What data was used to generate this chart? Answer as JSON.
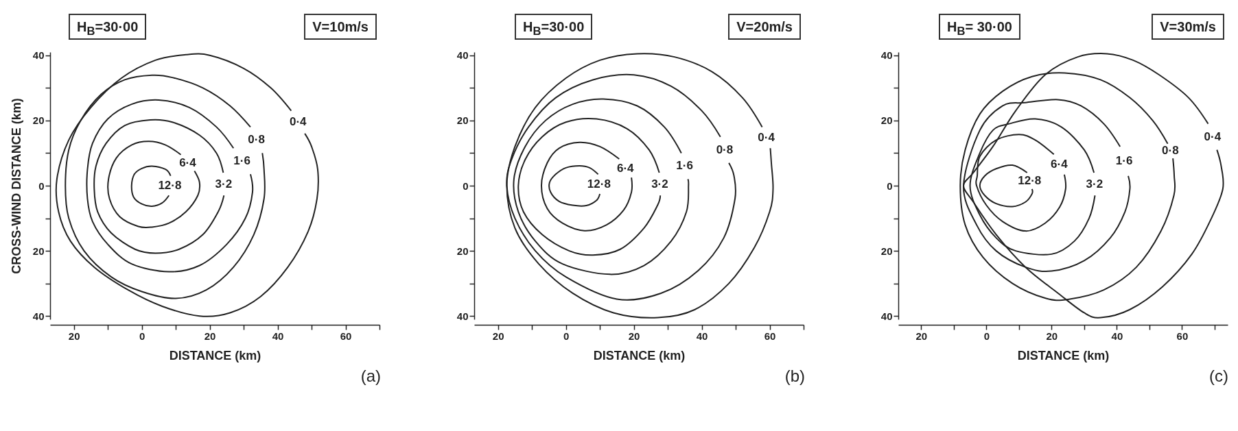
{
  "chart_data": [
    {
      "type": "line",
      "xlabel": "DISTANCE (km)",
      "ylabel": "CROSS-WIND DISTANCE (km)",
      "annotations": [
        "H$_{B}$=30·00",
        "V=10m/s",
        "(a)"
      ],
      "xlim": [
        -27,
        70
      ],
      "ylim": [
        -41,
        41
      ],
      "xticks": [
        {
          "value": -20,
          "label": "20"
        },
        {
          "value": -10,
          "label": null
        },
        0,
        {
          "value": 10,
          "label": null
        },
        20,
        {
          "value": 30,
          "label": null
        },
        40,
        {
          "value": 50,
          "label": null
        },
        60,
        {
          "value": 70,
          "label": null
        }
      ],
      "yticks": [
        {
          "value": -40,
          "label": "40"
        },
        {
          "value": -30,
          "label": null
        },
        {
          "value": -20,
          "label": "20"
        },
        {
          "value": -10,
          "label": null
        },
        0,
        {
          "value": 10,
          "label": null
        },
        20,
        {
          "value": 30,
          "label": null
        },
        40
      ],
      "grid": false,
      "legend": false,
      "marker": "none",
      "line_style": "solid",
      "series": [
        {
          "name": "12·8",
          "color": "#222222",
          "x": [
            8.5,
            7,
            3,
            0,
            -2.2,
            -3,
            -2.4,
            0,
            3,
            6,
            8
          ],
          "values": [
            3,
            5,
            6,
            5.3,
            3.5,
            0,
            -3.5,
            -5.6,
            -6.3,
            -5.3,
            -3
          ]
        },
        {
          "name": "6·4",
          "color": "#222222",
          "x": [
            11.5,
            7,
            2,
            -3,
            -7.5,
            -9.8,
            -9.5,
            -6.5,
            -1,
            3,
            8,
            13,
            16.5,
            17,
            15.5
          ],
          "values": [
            9.5,
            12.5,
            13.6,
            12.5,
            8.5,
            2,
            -4,
            -9.5,
            -12.5,
            -12.7,
            -11.5,
            -8,
            -3,
            1,
            4.5
          ]
        },
        {
          "name": "3·2",
          "color": "#222222",
          "x": [
            24,
            22,
            17,
            9,
            2.5,
            -5,
            -10.5,
            -13.5,
            -14,
            -13,
            -9,
            -2,
            4,
            11,
            18,
            22.5,
            24.2
          ],
          "values": [
            4,
            10,
            15.5,
            19.5,
            20.2,
            18.5,
            13,
            6,
            -1,
            -8,
            -14.5,
            -19.5,
            -20.7,
            -19.5,
            -15,
            -8,
            -3
          ]
        },
        {
          "name": "1·6",
          "color": "#222222",
          "x": [
            27,
            22,
            14,
            5,
            -3,
            -10,
            -14.5,
            -16,
            -16,
            -14.5,
            -10,
            -3,
            8,
            17,
            25,
            30.5,
            32.6,
            32
          ],
          "values": [
            11.5,
            18,
            24,
            26.3,
            25,
            20.5,
            13,
            5,
            -4,
            -11,
            -18,
            -24,
            -26.4,
            -24.5,
            -18,
            -10,
            -2,
            3.5
          ]
        },
        {
          "name": "0·8",
          "color": "#222222",
          "x": [
            32,
            26,
            18,
            9,
            3,
            -5,
            -12,
            -18,
            -21.5,
            -22.5,
            -21.5,
            -17,
            -9,
            0,
            10,
            19,
            27,
            33,
            36,
            36,
            35.5
          ],
          "values": [
            18,
            24.5,
            30,
            33.2,
            33.9,
            32.5,
            28,
            20,
            11,
            0,
            -10,
            -20,
            -28,
            -32.5,
            -34.6,
            -32,
            -25,
            -15,
            -4,
            5,
            10
          ]
        },
        {
          "name": "0·4",
          "color": "#222222",
          "x": [
            44,
            38,
            30,
            20,
            13,
            4,
            -6,
            -15,
            -21.5,
            -25,
            -24.5,
            -21,
            -14,
            -4,
            6,
            17,
            26,
            35,
            43,
            49,
            51.6,
            51.8,
            50,
            48
          ],
          "values": [
            23,
            30,
            36,
            40,
            40.2,
            38.5,
            33,
            24,
            14,
            2,
            -8,
            -17,
            -25,
            -32,
            -37,
            -40,
            -39,
            -34,
            -25,
            -14,
            -4,
            5,
            12,
            16
          ]
        }
      ]
    },
    {
      "type": "line",
      "xlabel": "DISTANCE (km)",
      "annotations": [
        "H$_{B}$=30·00",
        "V=20m/s",
        "(b)"
      ],
      "xlim": [
        -27,
        70
      ],
      "ylim": [
        -41,
        41
      ],
      "xticks": [
        {
          "value": -20,
          "label": "20"
        },
        {
          "value": -10,
          "label": null
        },
        0,
        {
          "value": 10,
          "label": null
        },
        20,
        {
          "value": 30,
          "label": null
        },
        40,
        {
          "value": 50,
          "label": null
        },
        60,
        {
          "value": 70,
          "label": null
        }
      ],
      "yticks": [
        {
          "value": -40,
          "label": "40"
        },
        {
          "value": -30,
          "label": null
        },
        {
          "value": -20,
          "label": "20"
        },
        {
          "value": -10,
          "label": null
        },
        0,
        {
          "value": 10,
          "label": null
        },
        20,
        {
          "value": 30,
          "label": null
        },
        40
      ],
      "grid": false,
      "legend": false,
      "marker": "none",
      "line_style": "solid",
      "series": [
        {
          "name": "12·8",
          "color": "#222222",
          "x": [
            9.5,
            7,
            4,
            0,
            -3,
            -4.8,
            -4.5,
            -2,
            2,
            6,
            9,
            10
          ],
          "values": [
            3.5,
            5.5,
            6.1,
            5.5,
            3.5,
            1,
            -2,
            -4.8,
            -6,
            -6.1,
            -4.5,
            -2.5
          ]
        },
        {
          "name": "6·4",
          "color": "#222222",
          "x": [
            15.7,
            10,
            4,
            -2,
            -5.5,
            -7.2,
            -5.5,
            -1,
            5.5,
            12,
            17,
            19.3,
            19.3
          ],
          "values": [
            8.2,
            12,
            13.3,
            11.5,
            7,
            0,
            -7,
            -11.5,
            -13.8,
            -12,
            -7.5,
            -2,
            2.5
          ]
        },
        {
          "name": "3·2",
          "color": "#222222",
          "x": [
            27.5,
            24.5,
            18,
            9,
            0,
            -7,
            -12,
            -14,
            -12.5,
            -7,
            1,
            8,
            16,
            23,
            27,
            27.8
          ],
          "values": [
            4,
            11,
            17.5,
            20.5,
            19.5,
            15,
            8,
            0,
            -8,
            -15,
            -20,
            -21.3,
            -19.5,
            -13,
            -6,
            -3
          ]
        },
        {
          "name": "1·6",
          "color": "#222222",
          "x": [
            34,
            29,
            21,
            11,
            2,
            -6,
            -12,
            -15.3,
            -14,
            -9,
            -1,
            13,
            23,
            31,
            35.5,
            36.1,
            35.9
          ],
          "values": [
            10,
            18,
            24.5,
            26.6,
            25,
            20,
            12,
            2,
            -8,
            -17,
            -24,
            -27.2,
            -24.5,
            -17,
            -8,
            0,
            2
          ]
        },
        {
          "name": "0·8",
          "color": "#222222",
          "x": [
            45.5,
            40,
            31,
            20,
            8,
            -3,
            -11,
            -16,
            -17.4,
            -15,
            -9,
            0,
            15,
            28,
            39,
            46.5,
            49.8,
            49.5,
            48
          ],
          "values": [
            15,
            23,
            30.5,
            34,
            32.5,
            27,
            18,
            8,
            0,
            -10,
            -20,
            -28,
            -34.8,
            -33,
            -26,
            -16,
            -4,
            3,
            7
          ]
        },
        {
          "name": "0·4",
          "color": "#222222",
          "x": [
            57.8,
            52,
            43,
            32,
            21,
            10,
            0,
            -9,
            -15,
            -17.4,
            -15,
            -8,
            2,
            14,
            27,
            38,
            48,
            55.5,
            60,
            61,
            60.5,
            60.2
          ],
          "values": [
            18,
            27,
            35,
            39.5,
            40.5,
            38.5,
            33,
            24,
            12,
            0,
            -13,
            -24,
            -33,
            -39,
            -40.5,
            -38,
            -30,
            -19,
            -8,
            -1,
            7,
            11.5
          ]
        }
      ]
    },
    {
      "type": "line",
      "xlabel": "DISTANCE (km)",
      "annotations": [
        "H$_{B}$= 30·00",
        "V=30m/s",
        "(c)"
      ],
      "xlim": [
        -27,
        74
      ],
      "ylim": [
        -41,
        41
      ],
      "xticks": [
        {
          "value": -20,
          "label": "20"
        },
        {
          "value": -10,
          "label": null
        },
        0,
        {
          "value": 10,
          "label": null
        },
        20,
        {
          "value": 30,
          "label": null
        },
        40,
        {
          "value": 50,
          "label": null
        },
        60,
        {
          "value": 70,
          "label": null
        }
      ],
      "yticks": [
        {
          "value": -40,
          "label": "40"
        },
        {
          "value": -30,
          "label": null
        },
        {
          "value": -20,
          "label": "20"
        },
        {
          "value": -10,
          "label": null
        },
        0,
        {
          "value": 10,
          "label": null
        },
        20,
        {
          "value": 30,
          "label": null
        },
        40
      ],
      "grid": false,
      "legend": false,
      "marker": "none",
      "line_style": "solid",
      "series": [
        {
          "name": "12·8",
          "color": "#222222",
          "x": [
            12.5,
            8,
            3,
            -0.5,
            -2,
            -0.5,
            3,
            8,
            12,
            14,
            14
          ],
          "values": [
            4,
            6.3,
            5.2,
            3,
            0,
            -3,
            -5.5,
            -6.4,
            -5,
            -2.5,
            -1
          ]
        },
        {
          "name": "6·4",
          "color": "#222222",
          "x": [
            20.7,
            15,
            10,
            3,
            -2,
            -2.8,
            -3,
            0,
            5,
            12,
            18,
            22.5,
            24.3,
            23.9
          ],
          "values": [
            9.6,
            14,
            15.7,
            14,
            9,
            3,
            0,
            -6,
            -11,
            -13.9,
            -11.5,
            -6.5,
            -1,
            3.4
          ]
        },
        {
          "name": "3·2",
          "color": "#222222",
          "x": [
            33,
            30,
            23,
            15,
            7,
            2,
            -2,
            -5,
            -2,
            3,
            9,
            20,
            27,
            31.5,
            33.3
          ],
          "values": [
            4,
            11,
            18,
            20.5,
            19,
            17,
            10,
            0,
            -9,
            -16,
            -20,
            -21,
            -17,
            -10,
            -3
          ]
        },
        {
          "name": "1·6",
          "color": "#222222",
          "x": [
            41,
            36,
            29,
            22,
            12,
            5,
            -2,
            -7,
            -3,
            3,
            12,
            20,
            30,
            38,
            42.5,
            44,
            43.5
          ],
          "values": [
            12,
            19,
            24.5,
            26.4,
            25.5,
            24.5,
            17,
            0,
            -12,
            -20,
            -25,
            -26.2,
            -23,
            -16,
            -8,
            -1,
            3
          ]
        },
        {
          "name": "0·8",
          "color": "#222222",
          "x": [
            55.6,
            51,
            44,
            35,
            24,
            14,
            5,
            -2,
            -6.5,
            -8,
            -6.5,
            -1,
            8,
            18,
            25,
            36,
            46,
            53.5,
            57.5,
            57.6,
            57.2
          ],
          "values": [
            12.9,
            20,
            27,
            32.5,
            34.6,
            33.5,
            29,
            22,
            11,
            0,
            -12,
            -22,
            -30,
            -34.5,
            -34.9,
            -32,
            -25,
            -14,
            -3,
            3,
            8.4
          ]
        },
        {
          "name": "0·4",
          "color": "#222222",
          "x": [
            68,
            62,
            53,
            45,
            37,
            28,
            18,
            9,
            2,
            -4,
            -7,
            -4,
            3,
            12,
            22,
            30,
            35,
            44,
            54,
            63,
            69,
            72.5,
            72,
            70.7
          ],
          "values": [
            19,
            27,
            34,
            38.5,
            40.5,
            39.5,
            34,
            23,
            12,
            4,
            0,
            -5,
            -15,
            -25,
            -33,
            -39,
            -40.5,
            -38,
            -31,
            -21,
            -10,
            -1,
            6,
            11
          ]
        }
      ]
    }
  ]
}
